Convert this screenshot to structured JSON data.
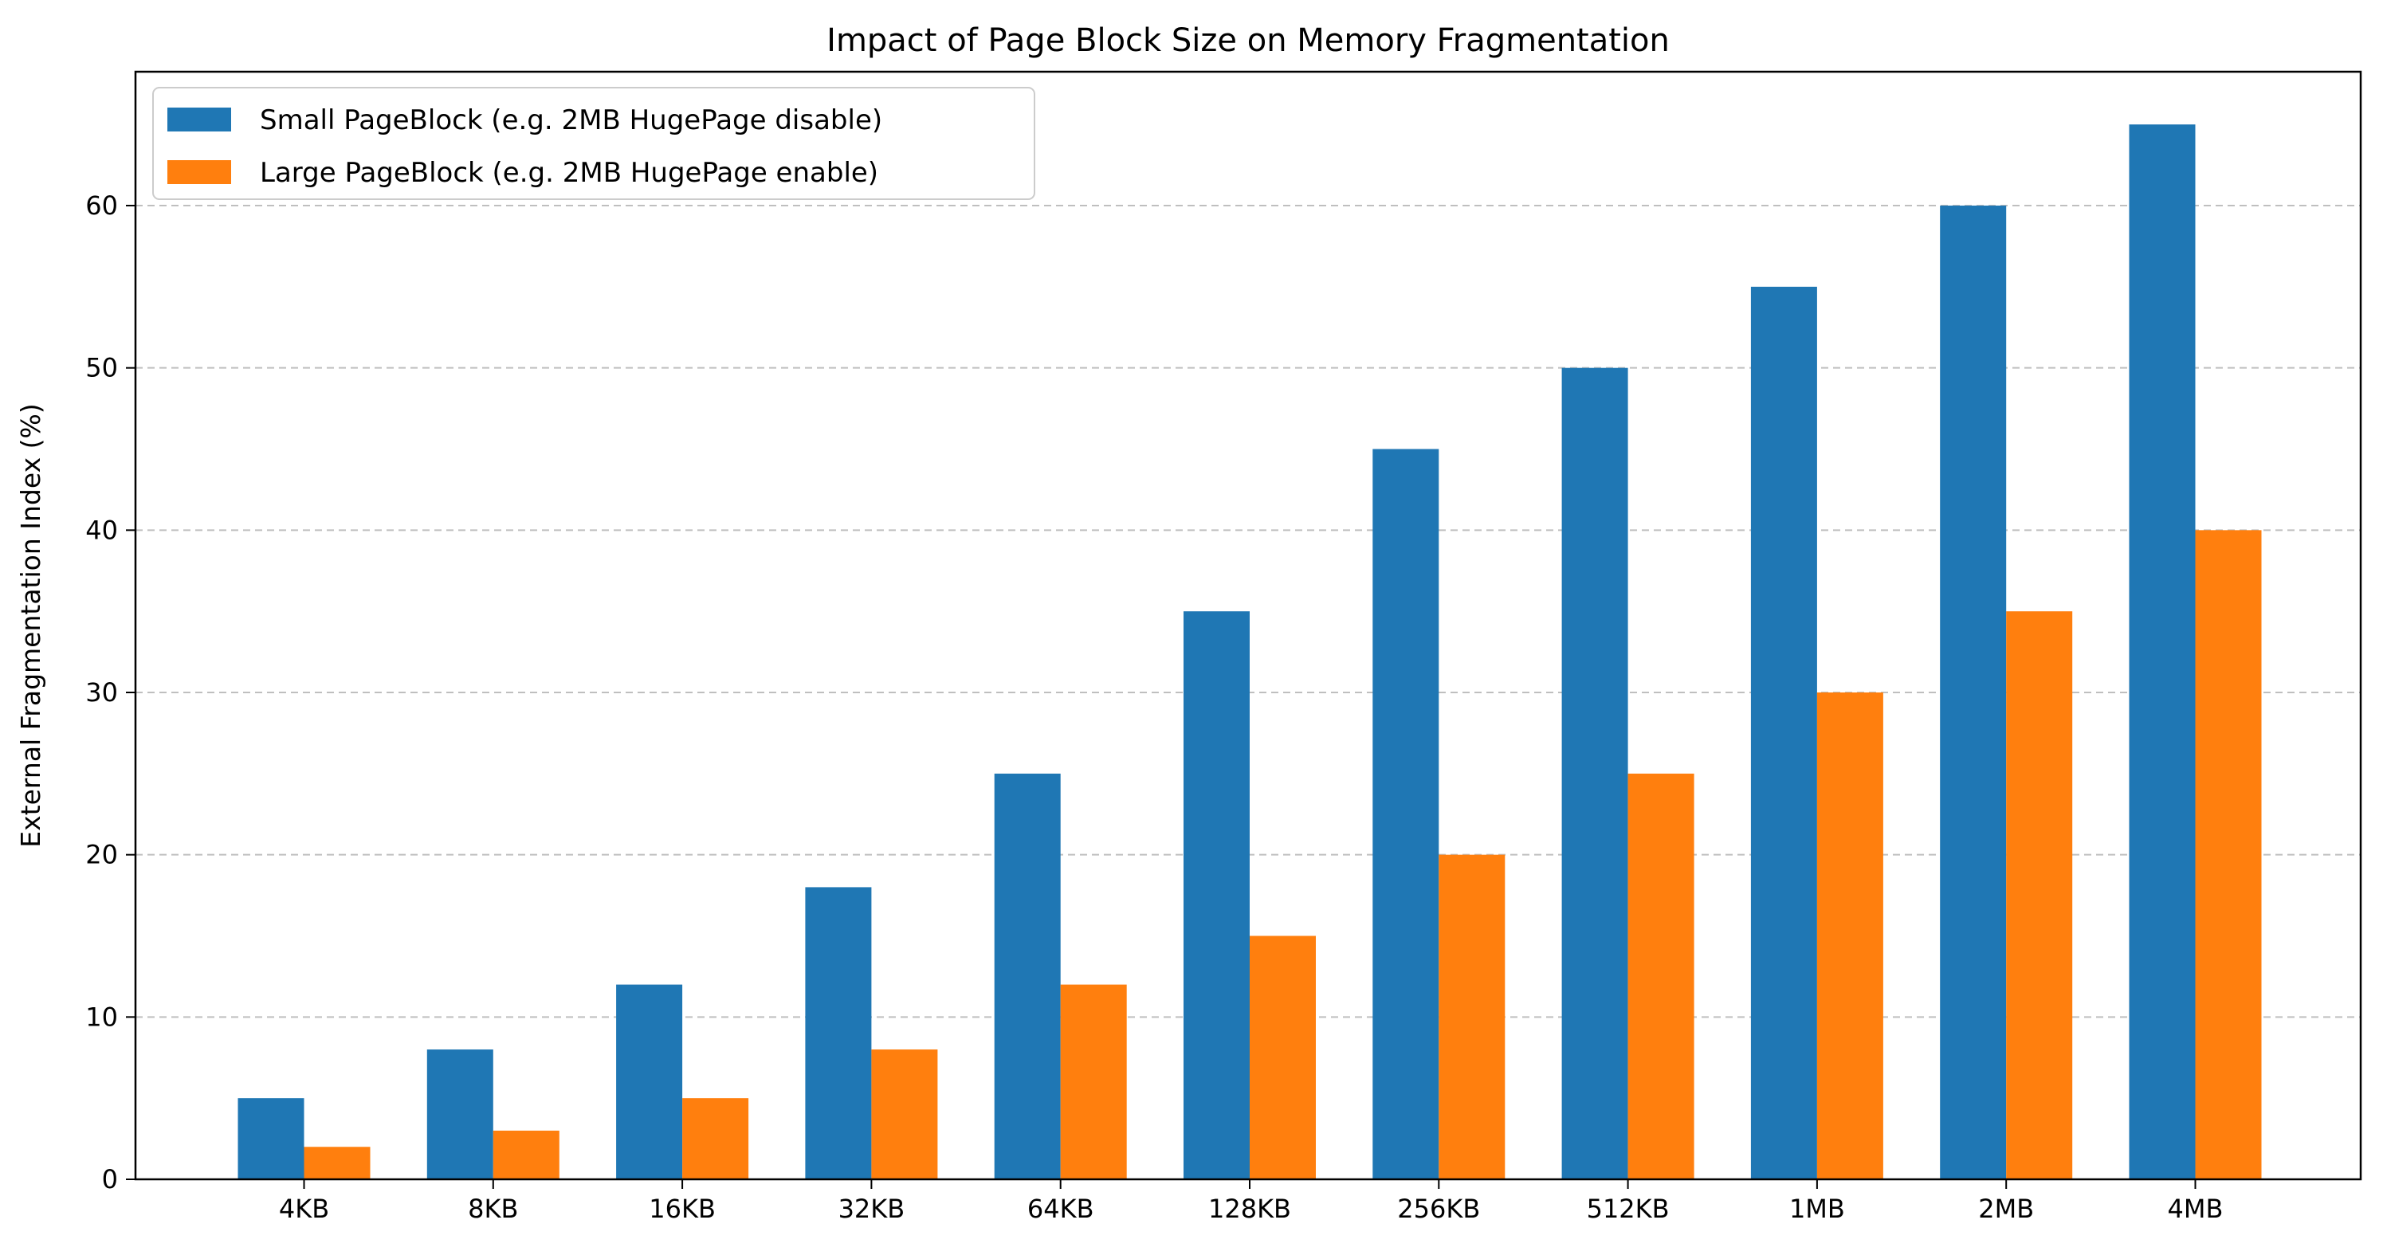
{
  "chart_data": {
    "type": "bar",
    "title": "Impact of Page Block Size on Memory Fragmentation",
    "xlabel": "",
    "ylabel": "External Fragmentation Index (%)",
    "categories": [
      "4KB",
      "8KB",
      "16KB",
      "32KB",
      "64KB",
      "128KB",
      "256KB",
      "512KB",
      "1MB",
      "2MB",
      "4MB"
    ],
    "series": [
      {
        "name": "Small PageBlock (e.g. 2MB HugePage disable)",
        "color": "#1f77b4",
        "values": [
          5,
          8,
          12,
          18,
          25,
          35,
          45,
          50,
          55,
          60,
          65
        ]
      },
      {
        "name": "Large PageBlock (e.g. 2MB HugePage enable)",
        "color": "#ff7f0e",
        "values": [
          2,
          3,
          5,
          8,
          12,
          15,
          20,
          25,
          30,
          35,
          40
        ]
      }
    ],
    "ylim": [
      0,
      68.25
    ],
    "yticks": [
      0,
      10,
      20,
      30,
      40,
      50,
      60
    ],
    "grid": "y-dashed",
    "legend_position": "upper-left"
  }
}
